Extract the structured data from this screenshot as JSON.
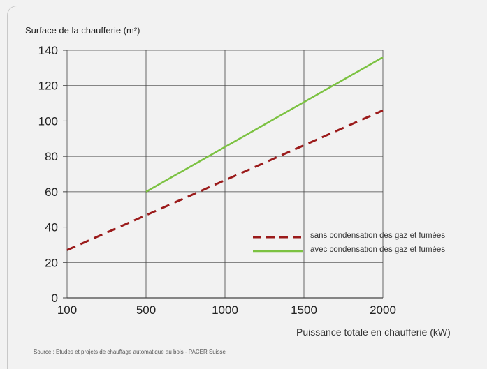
{
  "chart_data": {
    "type": "line",
    "title": "",
    "ylabel": "Surface de la chaufferie (m²)",
    "xlabel": "Puissance totale en chaufferie (kW)",
    "x_ticks": [
      100,
      500,
      1000,
      1500,
      2000
    ],
    "y_ticks": [
      0,
      20,
      40,
      60,
      80,
      100,
      120,
      140
    ],
    "xlim": [
      100,
      2000
    ],
    "ylim": [
      0,
      140
    ],
    "grid": "vertical at x ticks, horizontal at y ticks",
    "legend_placement": "lower-right",
    "series": [
      {
        "name": "sans condensation des gaz et fumées",
        "style": "dashed",
        "color": "#9b1b1b",
        "x": [
          100,
          2000
        ],
        "y": [
          27,
          106
        ]
      },
      {
        "name": "avec condensation des gaz et fumées",
        "style": "solid",
        "color": "#7cc242",
        "x": [
          500,
          2000
        ],
        "y": [
          60,
          136
        ]
      }
    ]
  },
  "source": "Source : Etudes et projets de chauffage automatique au bois - PACER Suisse"
}
